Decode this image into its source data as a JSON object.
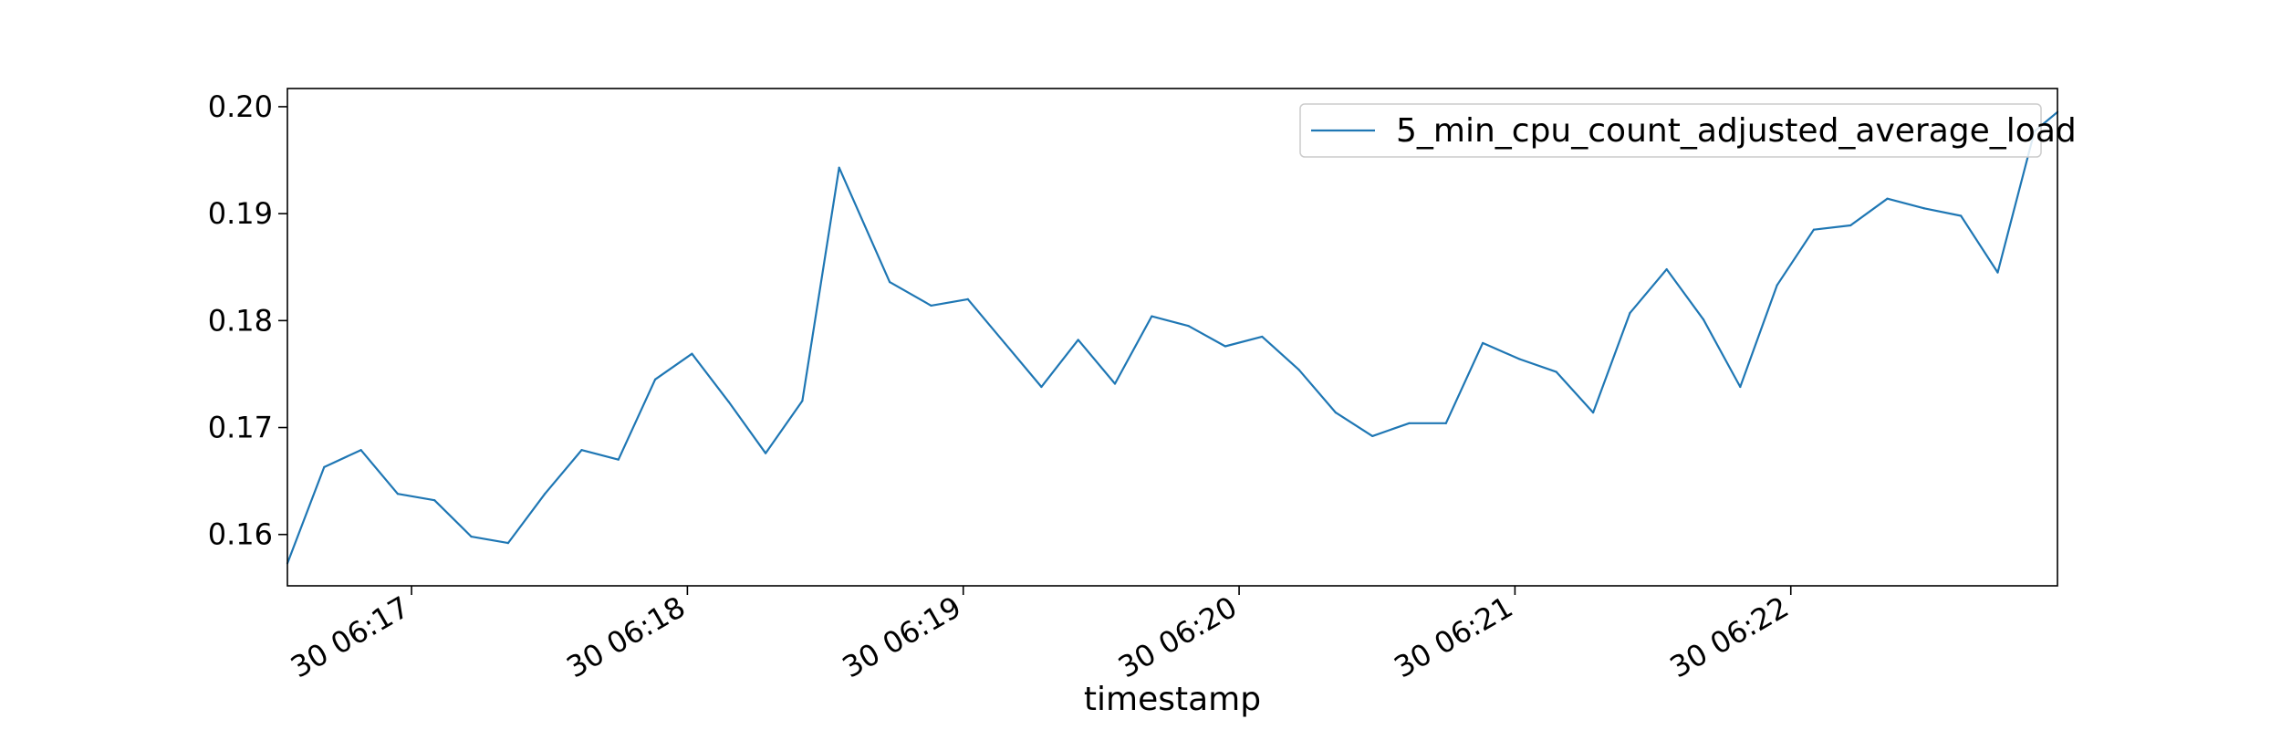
{
  "chart_data": {
    "type": "line",
    "title": "",
    "xlabel": "timestamp",
    "ylabel": "",
    "x_tick_labels": [
      "30 06:17",
      "30 06:18",
      "30 06:19",
      "30 06:20",
      "30 06:21",
      "30 06:22"
    ],
    "y_tick_labels": [
      "0.16",
      "0.17",
      "0.18",
      "0.19",
      "0.20"
    ],
    "y_ticks": [
      0.16,
      0.17,
      0.18,
      0.19,
      0.2
    ],
    "ylim": [
      0.1552,
      0.2017
    ],
    "xlim": [
      "06:16:33",
      "06:22:58"
    ],
    "grid": false,
    "legend_position": "top-right",
    "x_label_rotation_deg": 30,
    "series": [
      {
        "name": "5_min_cpu_count_adjusted_average_load",
        "color": "#1f77b4",
        "x": [
          "06:16:33",
          "06:16:41",
          "06:16:49",
          "06:16:57",
          "06:17:05",
          "06:17:13",
          "06:17:21",
          "06:17:29",
          "06:17:37",
          "06:17:45",
          "06:17:53",
          "06:18:01",
          "06:18:09",
          "06:18:17",
          "06:18:25",
          "06:18:33",
          "06:18:44",
          "06:18:53",
          "06:19:01",
          "06:19:09",
          "06:19:17",
          "06:19:25",
          "06:19:33",
          "06:19:41",
          "06:19:49",
          "06:19:57",
          "06:20:05",
          "06:20:13",
          "06:20:21",
          "06:20:29",
          "06:20:37",
          "06:20:45",
          "06:20:53",
          "06:21:01",
          "06:21:09",
          "06:21:17",
          "06:21:25",
          "06:21:33",
          "06:21:41",
          "06:21:49",
          "06:21:57",
          "06:22:05",
          "06:22:13",
          "06:22:21",
          "06:22:29",
          "06:22:37",
          "06:22:45",
          "06:22:53",
          "06:22:58"
        ],
        "values": [
          0.1573,
          0.1663,
          0.1679,
          0.1638,
          0.1632,
          0.1598,
          0.1592,
          0.1638,
          0.1679,
          0.167,
          0.1745,
          0.1769,
          0.1724,
          0.1676,
          0.1725,
          0.1943,
          0.1836,
          0.1814,
          0.182,
          0.1779,
          0.1738,
          0.1782,
          0.1741,
          0.1804,
          0.1795,
          0.1776,
          0.1785,
          0.1754,
          0.1714,
          0.1692,
          0.1704,
          0.1704,
          0.1779,
          0.1764,
          0.1752,
          0.1714,
          0.1807,
          0.1848,
          0.1801,
          0.1738,
          0.1833,
          0.1885,
          0.1889,
          0.1914,
          0.1905,
          0.1898,
          0.1845,
          0.1977,
          0.1995
        ]
      }
    ]
  }
}
